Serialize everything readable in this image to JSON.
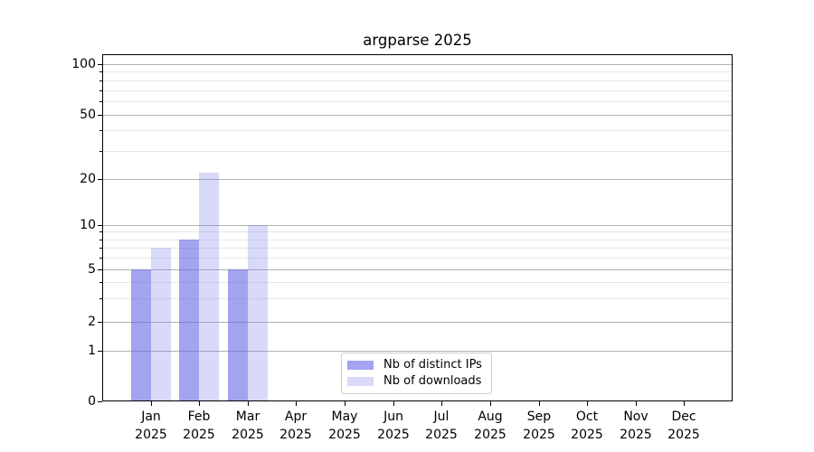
{
  "chart_data": {
    "type": "bar",
    "title": "argparse 2025",
    "categories": [
      "Jan",
      "Feb",
      "Mar",
      "Apr",
      "May",
      "Jun",
      "Jul",
      "Aug",
      "Sep",
      "Oct",
      "Nov",
      "Dec"
    ],
    "x_tick_year": "2025",
    "series": [
      {
        "name": "Nb of distinct IPs",
        "color": "#6666e6",
        "alpha": 0.6,
        "values": [
          5,
          8,
          5,
          0,
          0,
          0,
          0,
          0,
          0,
          0,
          0,
          0
        ]
      },
      {
        "name": "Nb of downloads",
        "color": "#6666e6",
        "alpha": 0.25,
        "values": [
          7,
          22,
          10,
          0,
          0,
          0,
          0,
          0,
          0,
          0,
          0,
          0
        ]
      }
    ],
    "xlabel": "",
    "ylabel": "",
    "yscale": "symlog",
    "ylim": [
      0,
      115
    ],
    "yticks": [
      0,
      1,
      2,
      5,
      10,
      20,
      50,
      100
    ],
    "minor_yticks": [
      3,
      4,
      6,
      7,
      8,
      9,
      30,
      40,
      60,
      70,
      80,
      90
    ],
    "grid": {
      "horizontal": true,
      "major_color": "#b2b2b2",
      "minor_color": "#e7e7e7"
    },
    "legend": {
      "position": "lower center"
    },
    "axes_color": "#000000",
    "background_color": "#ffffff"
  }
}
